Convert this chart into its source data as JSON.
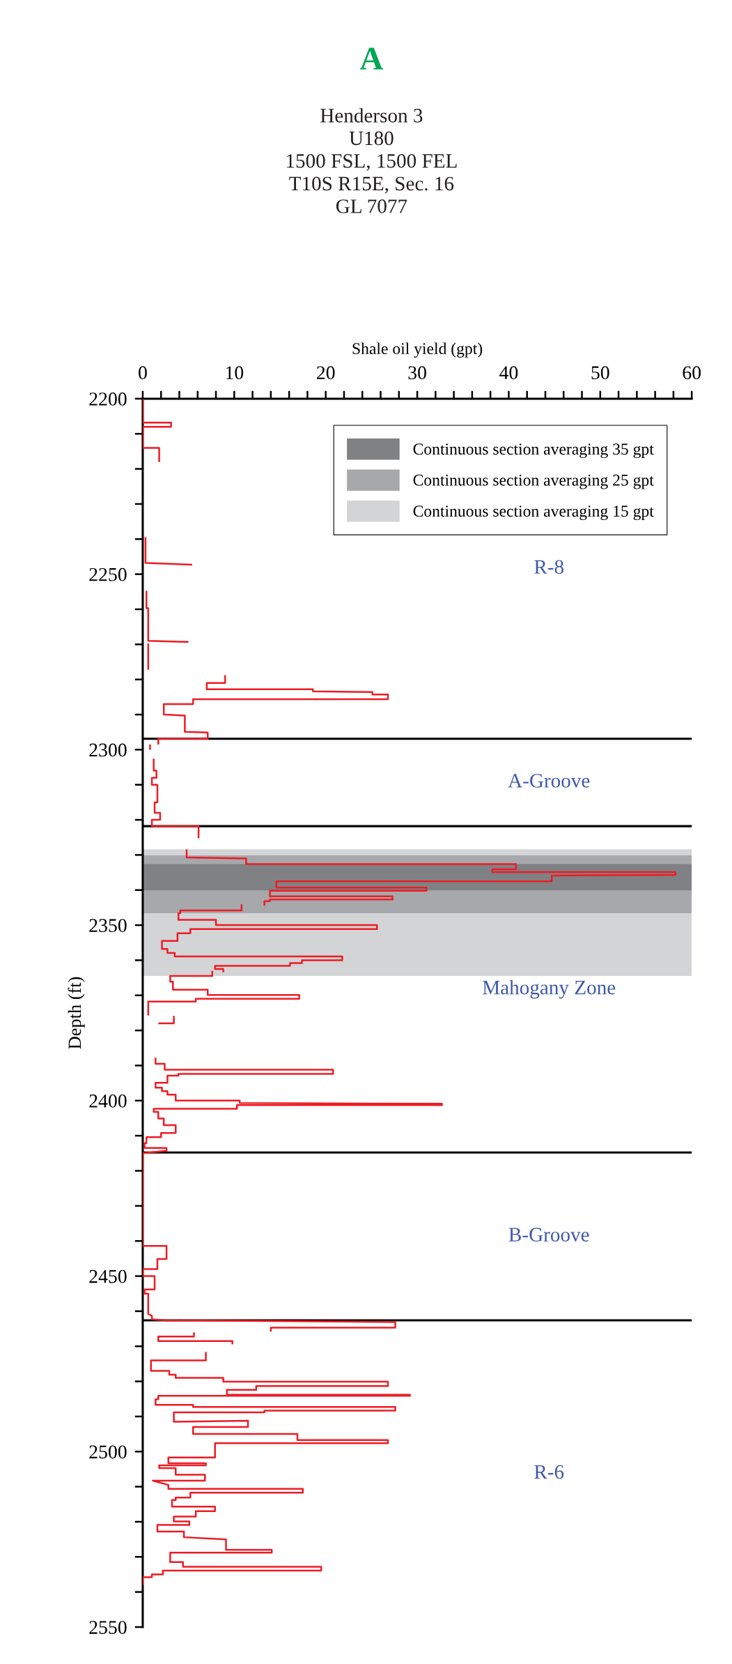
{
  "chart_data": {
    "type": "line",
    "title": "A",
    "subtitle": "Henderson 3\nU180\n1500 FSL, 1500 FEL\nT10S R15E, Sec. 16\nGL 7077",
    "xlabel": "Shale oil yield (gpt)",
    "ylabel": "Depth (ft)",
    "xlim": [
      0,
      60
    ],
    "ylim": [
      2550,
      2200
    ],
    "xticks": [
      0,
      {
        "value": 2,
        "label": null
      },
      {
        "value": 4,
        "label": null
      },
      {
        "value": 6,
        "label": null
      },
      {
        "value": 8,
        "label": null
      },
      10,
      {
        "value": 12,
        "label": null
      },
      {
        "value": 14,
        "label": null
      },
      {
        "value": 16,
        "label": null
      },
      {
        "value": 18,
        "label": null
      },
      20,
      {
        "value": 22,
        "label": null
      },
      {
        "value": 24,
        "label": null
      },
      {
        "value": 26,
        "label": null
      },
      {
        "value": 28,
        "label": null
      },
      30,
      {
        "value": 32,
        "label": null
      },
      {
        "value": 34,
        "label": null
      },
      {
        "value": 36,
        "label": null
      },
      {
        "value": 38,
        "label": null
      },
      40,
      {
        "value": 42,
        "label": null
      },
      {
        "value": 44,
        "label": null
      },
      {
        "value": 46,
        "label": null
      },
      {
        "value": 48,
        "label": null
      },
      50,
      {
        "value": 52,
        "label": null
      },
      {
        "value": 54,
        "label": null
      },
      {
        "value": 56,
        "label": null
      },
      {
        "value": 58,
        "label": null
      },
      60
    ],
    "yticks": [
      2200,
      {
        "value": 2210,
        "label": null
      },
      {
        "value": 2220,
        "label": null
      },
      {
        "value": 2230,
        "label": null
      },
      {
        "value": 2240,
        "label": null
      },
      2250,
      {
        "value": 2260,
        "label": null
      },
      {
        "value": 2270,
        "label": null
      },
      {
        "value": 2280,
        "label": null
      },
      {
        "value": 2290,
        "label": null
      },
      2300,
      {
        "value": 2310,
        "label": null
      },
      {
        "value": 2320,
        "label": null
      },
      {
        "value": 2330,
        "label": null
      },
      {
        "value": 2340,
        "label": null
      },
      2350,
      {
        "value": 2360,
        "label": null
      },
      {
        "value": 2370,
        "label": null
      },
      {
        "value": 2380,
        "label": null
      },
      {
        "value": 2390,
        "label": null
      },
      2400,
      {
        "value": 2410,
        "label": null
      },
      {
        "value": 2420,
        "label": null
      },
      {
        "value": 2430,
        "label": null
      },
      {
        "value": 2440,
        "label": null
      },
      2450,
      {
        "value": 2460,
        "label": null
      },
      {
        "value": 2470,
        "label": null
      },
      {
        "value": 2480,
        "label": null
      },
      {
        "value": 2490,
        "label": null
      },
      2500,
      {
        "value": 2510,
        "label": null
      },
      {
        "value": 2520,
        "label": null
      },
      {
        "value": 2530,
        "label": null
      },
      {
        "value": 2540,
        "label": null
      },
      2550
    ],
    "grid": false,
    "legend": "top right",
    "marker": "none",
    "line_style": "solid",
    "series": [
      {
        "color": "#ed1c24",
        "x": [
          0,
          0,
          3.1,
          3.1,
          0,
          0,
          1.8,
          1.8,
          null,
          0.3,
          0.3,
          5.3,
          null,
          0.4,
          0.4,
          0.6,
          0.6,
          4.9,
          null,
          0.6,
          0.6,
          null,
          9.0,
          9.0,
          7.0,
          7.0,
          18.6,
          18.6,
          25.1,
          25.1,
          26.8,
          26.8,
          5.5,
          5.5,
          2.3,
          2.3,
          4.6,
          4.6,
          7.1,
          7.1,
          1.7,
          1.7,
          null,
          0.8,
          0.8,
          null,
          1.2,
          1.2,
          1.5,
          1.5,
          1.0,
          1.0,
          1.6,
          1.6,
          1.3,
          1.3,
          1.9,
          1.9,
          1.0,
          1.0,
          6.1,
          6.1,
          null,
          4.8,
          4.8,
          11.3,
          11.3,
          40.8,
          40.8,
          38.2,
          38.2,
          58.2,
          58.2,
          44.7,
          44.7,
          14.6,
          14.6,
          31.0,
          31.0,
          13.9,
          13.9,
          27.3,
          27.3,
          13.9,
          13.9,
          13.3,
          13.3,
          null,
          10.8,
          10.8,
          4.1,
          4.1,
          3.9,
          3.9,
          8.0,
          8.0,
          25.6,
          25.6,
          5.2,
          5.2,
          3.8,
          3.8,
          2.1,
          2.1,
          2.7,
          2.7,
          3.5,
          3.5,
          21.8,
          21.8,
          17.4,
          17.4,
          16.1,
          16.1,
          7.9,
          7.9,
          8.8,
          8.8,
          null,
          7.6,
          7.6,
          3.0,
          3.0,
          3.3,
          3.3,
          7.1,
          7.1,
          17.1,
          17.1,
          5.8,
          5.8,
          0.6,
          0.6,
          null,
          3.4,
          3.4,
          1.8,
          null,
          1.4,
          1.4,
          2.4,
          2.4,
          20.8,
          20.8,
          3.9,
          3.9,
          2.7,
          2.7,
          1.4,
          1.4,
          2.1,
          2.1,
          2.7,
          2.7,
          3.6,
          3.6,
          10.6,
          10.6,
          32.7,
          32.7,
          10.3,
          10.3,
          1.2,
          1.2,
          1.7,
          1.7,
          2.3,
          2.3,
          3.6,
          3.6,
          2.0,
          2.0,
          0.4,
          0.4,
          0.2,
          0.2,
          2.6,
          2.6,
          0,
          0,
          2.6,
          2.6,
          1.6,
          1.6,
          0,
          0,
          1.3,
          1.3,
          0.2,
          0.2,
          0.6,
          0.6,
          1.0,
          1.0,
          2.4,
          27.6,
          27.6,
          14.0,
          14.0,
          null,
          5.6,
          5.6,
          1.7,
          1.7,
          9.8,
          9.8,
          null,
          6.9,
          6.9,
          0.9,
          0.9,
          2.9,
          2.9,
          3.6,
          3.6,
          8.8,
          8.8,
          26.8,
          26.8,
          12.4,
          12.4,
          9.2,
          9.2,
          29.2,
          29.2,
          1.7,
          1.7,
          1.4,
          1.4,
          5.5,
          5.5,
          27.6,
          27.6,
          13.3,
          13.3,
          3.4,
          3.4,
          11.5,
          11.5,
          5.5,
          5.5,
          16.9,
          16.9,
          26.8,
          26.8,
          7.9,
          7.9,
          2.8,
          2.8,
          6.9,
          6.9,
          1.8,
          1.8,
          3.6,
          3.6,
          6.8,
          6.8,
          1.1,
          2.8,
          2.8,
          17.5,
          17.5,
          5.2,
          5.2,
          3.6,
          3.6,
          3.2,
          3.2,
          7.9,
          7.9,
          5.8,
          5.8,
          3.4,
          3.4,
          5.1,
          5.1,
          1.6,
          1.6,
          4.5,
          4.5,
          9.1,
          9.1,
          14.1,
          14.1,
          3.0,
          3.0,
          4.4,
          4.4,
          19.5,
          19.5,
          2.2,
          2.2,
          1.0,
          1.0,
          0,
          0
        ],
        "values": [
          2200,
          2206.8,
          2206.8,
          2208,
          2208,
          2214,
          2214,
          2217.8,
          null,
          2239.7,
          2246.8,
          2247.3,
          null,
          2255,
          2259.7,
          2259.7,
          2269,
          2269.3,
          null,
          2270,
          2277,
          null,
          2279,
          2281,
          2281,
          2282.8,
          2282.8,
          2283.4,
          2283.6,
          2284.3,
          2284.3,
          2285.6,
          2285.6,
          2287,
          2287,
          2290,
          2290.3,
          2294.9,
          2295.1,
          2296.9,
          2296.9,
          2298.3,
          null,
          2298.8,
          2299.8,
          null,
          2302.8,
          2306,
          2306,
          2308,
          2308,
          2310,
          2310,
          2315,
          2315,
          2318,
          2318,
          2320,
          2320,
          2321.8,
          2321.8,
          2325,
          null,
          2328.7,
          2330.7,
          2331,
          2332.6,
          2332.6,
          2334.1,
          2334.1,
          2334.9,
          2334.9,
          2335.7,
          2335.9,
          2337.5,
          2337.5,
          2339.3,
          2339.3,
          2340.2,
          2340.2,
          2341.8,
          2341.8,
          2342.7,
          2342.7,
          2343.2,
          2343.2,
          2344.2,
          null,
          2344.3,
          2345.8,
          2345.8,
          2346.6,
          2346.6,
          2348.5,
          2348.5,
          2350,
          2350,
          2351.1,
          2351.1,
          2352.3,
          2352.3,
          2354.5,
          2354.5,
          2356.8,
          2356.8,
          2357.9,
          2357.9,
          2358.9,
          2358.9,
          2360,
          2360,
          2360.8,
          2360.8,
          2361.6,
          2361.6,
          2362.5,
          2362.5,
          2363.2,
          null,
          2363.3,
          2364.5,
          2364.5,
          2366.1,
          2366.1,
          2368.4,
          2368.4,
          2369.9,
          2369.9,
          2371,
          2371,
          2371.8,
          2371.8,
          2375.5,
          null,
          2376.1,
          2378,
          2378,
          null,
          2388,
          2389.5,
          2389.5,
          2391.2,
          2391.2,
          2392.4,
          2392.4,
          2392.9,
          2392.9,
          2394.9,
          2394.9,
          2396.3,
          2396.3,
          2397.3,
          2397.3,
          2398.3,
          2398.3,
          2400,
          2400,
          2400.7,
          2400.9,
          2401.3,
          2401.3,
          2402.3,
          2402.3,
          2403.2,
          2403.2,
          2405.1,
          2405.1,
          2407,
          2407,
          2409.2,
          2409.2,
          2410.4,
          2410.4,
          2412.1,
          2412.1,
          2413.5,
          2413.5,
          2414.3,
          2415,
          2441.4,
          2441.4,
          2445.1,
          2445.1,
          2448,
          2448,
          2450,
          2450,
          2453.8,
          2453.8,
          2455,
          2455,
          2460.8,
          2461.3,
          2462.3,
          2462.6,
          2463.1,
          2464.7,
          2464.7,
          2465.6,
          null,
          2466.3,
          2467.2,
          2467.2,
          2468.5,
          2468.5,
          2469.2,
          null,
          2471.9,
          2474,
          2474,
          2477,
          2477,
          2478.1,
          2478.1,
          2479,
          2479,
          2480.1,
          2480.1,
          2481.3,
          2481.3,
          2482.4,
          2482.4,
          2483.8,
          2483.8,
          2484.1,
          2484.1,
          2485.1,
          2485.1,
          2486.7,
          2486.7,
          2487.3,
          2487.3,
          2488.3,
          2488.3,
          2488.8,
          2488.8,
          2491.5,
          2491.2,
          2493,
          2493,
          2495,
          2495,
          2496.7,
          2496.7,
          2497.6,
          2497.6,
          2501.7,
          2501.7,
          2503.3,
          2503.3,
          2503.9,
          2503.9,
          2504.7,
          2504.7,
          2506.6,
          2506.6,
          2508.3,
          2508.3,
          2509.5,
          2510.6,
          2510.6,
          2511.7,
          2511.7,
          2513.1,
          2513.1,
          2513.8,
          2513.8,
          2515.7,
          2515.7,
          2517,
          2517,
          2518.5,
          2518.5,
          2519.9,
          2519.9,
          2520.9,
          2520.9,
          2522.8,
          2522.8,
          2524.4,
          2525,
          2528,
          2528,
          2528.8,
          2528.8,
          2531.5,
          2531.5,
          2532.8,
          2532.8,
          2533.9,
          2533.9,
          2535,
          2535,
          2535.8,
          2535.8,
          2537.8
        ]
      }
    ],
    "bands": [
      {
        "axis": "y",
        "from": 2332.6,
        "to": 2340.1,
        "label": "Continuous section averaging 35 gpt",
        "color": "#808184"
      },
      {
        "axis": "y",
        "from": 2330.1,
        "to": 2346.6,
        "label": "Continuous section averaging 25 gpt",
        "color": "#a7a8ab"
      },
      {
        "axis": "y",
        "from": 2328.4,
        "to": 2364.5,
        "label": "Continuous section averaging 15 gpt",
        "color": "#d3d4d6"
      }
    ],
    "ref_lines": [
      {
        "axis": "y",
        "value": 2296.9,
        "color": "#000000"
      },
      {
        "axis": "y",
        "value": 2321.8,
        "color": "#000000"
      },
      {
        "axis": "y",
        "value": 2414.8,
        "color": "#000000"
      },
      {
        "axis": "y",
        "value": 2462.6,
        "color": "#000000"
      }
    ],
    "annotations": [
      "R-8",
      "A-Groove",
      "Mahogany Zone",
      "B-Groove",
      "R-6"
    ]
  }
}
